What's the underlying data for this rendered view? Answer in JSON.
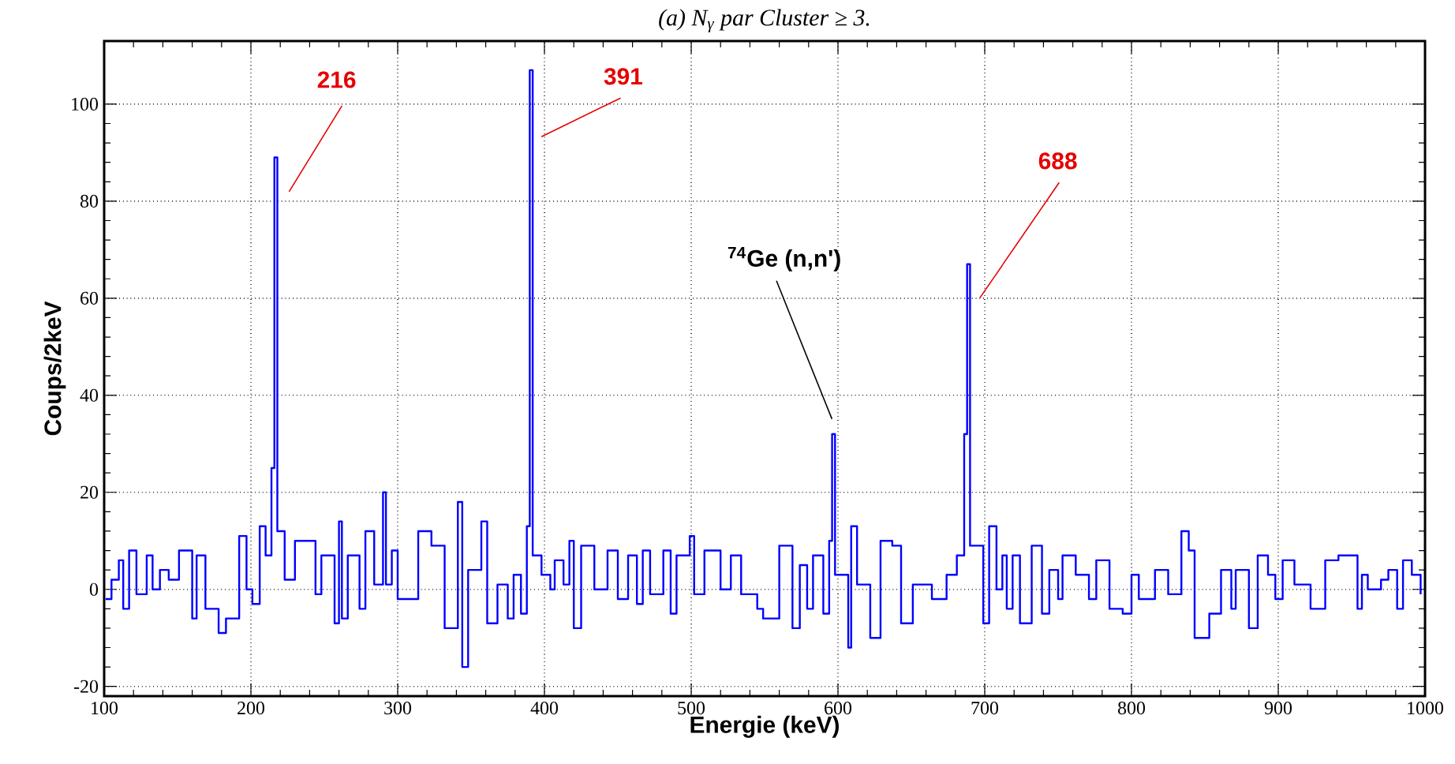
{
  "chart_data": {
    "type": "step",
    "title": "(a) N$_{γ}$ par Cluster ≥ 3.",
    "xlabel": "Energie (keV)",
    "ylabel": "Coups/2keV",
    "color": "#0000ff",
    "x": [
      101,
      105,
      110,
      113,
      117,
      122,
      129,
      133,
      138,
      144,
      151,
      160,
      163,
      169,
      178,
      183,
      192,
      197,
      201,
      206,
      210,
      214,
      216,
      218,
      223,
      230,
      237,
      244,
      248,
      257,
      260,
      262,
      266,
      274,
      278,
      284,
      290,
      292,
      296,
      300,
      307,
      314,
      323,
      332,
      341,
      344,
      348,
      357,
      361,
      368,
      375,
      379,
      384,
      388,
      390,
      392,
      398,
      404,
      407,
      413,
      417,
      420,
      425,
      434,
      443,
      450,
      457,
      463,
      467,
      472,
      481,
      486,
      490,
      499,
      502,
      509,
      520,
      527,
      534,
      545,
      549,
      560,
      569,
      574,
      579,
      583,
      590,
      594,
      596,
      598,
      607,
      609,
      613,
      622,
      629,
      637,
      643,
      651,
      664,
      674,
      681,
      686,
      688,
      690,
      699,
      703,
      708,
      712,
      715,
      719,
      724,
      732,
      739,
      744,
      750,
      753,
      762,
      771,
      776,
      785,
      794,
      800,
      805,
      816,
      825,
      834,
      839,
      843,
      853,
      861,
      868,
      871,
      880,
      886,
      893,
      898,
      903,
      911,
      922,
      932,
      941,
      954,
      957,
      961,
      970,
      975,
      981,
      985,
      991,
      997
    ],
    "values": [
      -2,
      2,
      6,
      -4,
      8,
      -1,
      7,
      0,
      4,
      2,
      8,
      -6,
      7,
      -4,
      -9,
      -6,
      11,
      0,
      -3,
      13,
      7,
      25,
      89,
      12,
      2,
      10,
      10,
      -1,
      7,
      -7,
      14,
      -6,
      7,
      -4,
      12,
      1,
      20,
      1,
      8,
      -2,
      -2,
      12,
      9,
      -8,
      18,
      -16,
      4,
      14,
      -7,
      1,
      -6,
      3,
      -5,
      13,
      107,
      7,
      3,
      0,
      6,
      1,
      10,
      -8,
      9,
      0,
      8,
      -2,
      7,
      -3,
      8,
      -1,
      8,
      -5,
      7,
      11,
      -1,
      8,
      0,
      7,
      -1,
      -4,
      -6,
      9,
      -8,
      5,
      -4,
      7,
      -5,
      10,
      32,
      3,
      -12,
      13,
      1,
      -10,
      10,
      9,
      -7,
      1,
      -2,
      3,
      7,
      32,
      67,
      9,
      -7,
      13,
      0,
      7,
      -4,
      7,
      -7,
      9,
      -5,
      4,
      -2,
      7,
      3,
      -2,
      6,
      -4,
      -5,
      3,
      -2,
      4,
      -1,
      12,
      8,
      -10,
      -5,
      4,
      -4,
      4,
      -8,
      7,
      3,
      -2,
      6,
      1,
      -4,
      6,
      7,
      -4,
      3,
      0,
      2,
      4,
      -4,
      6,
      3,
      -1
    ],
    "xlim": [
      100,
      1000
    ],
    "ylim": [
      -22,
      113
    ],
    "xticks": [
      100,
      200,
      300,
      400,
      500,
      600,
      700,
      800,
      900,
      1000
    ],
    "yticks": [
      -20,
      0,
      20,
      40,
      60,
      80,
      100
    ],
    "grid": true,
    "annotations": [
      "216",
      "391",
      "$^{74}$Ge (n,n')",
      "688"
    ]
  }
}
